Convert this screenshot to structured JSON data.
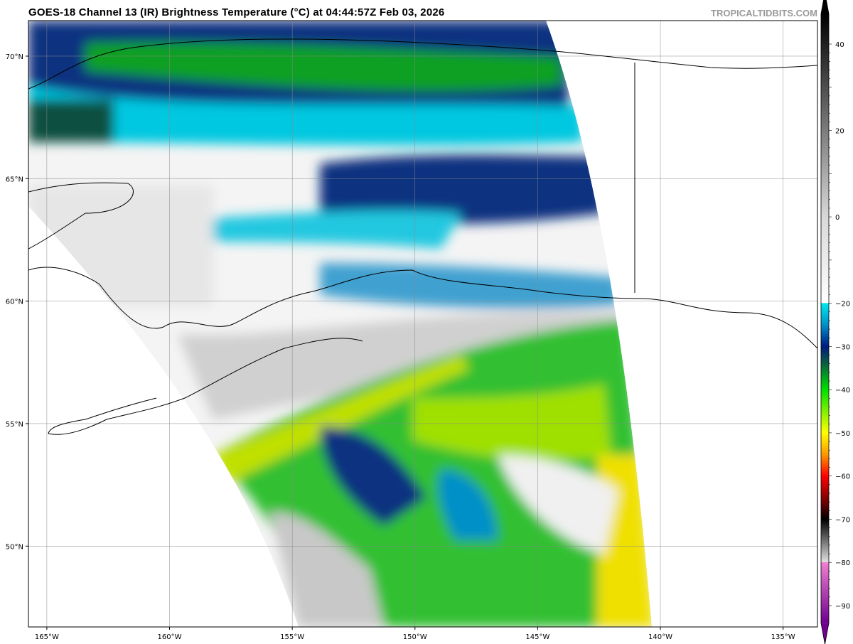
{
  "header": {
    "title": "GOES-18 Channel 13 (IR) Brightness Temperature (°C) at 04:44:57Z Feb 03, 2026",
    "credit": "TROPICALTIDBITS.COM"
  },
  "map": {
    "lon_labels": [
      "165°W",
      "160°W",
      "155°W",
      "150°W",
      "145°W",
      "140°W",
      "135°W"
    ],
    "lon_values": [
      -165,
      -160,
      -155,
      -150,
      -145,
      -140,
      -135
    ],
    "lat_labels": [
      "70°N",
      "65°N",
      "60°N",
      "55°N",
      "50°N"
    ],
    "lat_values": [
      70,
      65,
      60,
      55,
      50
    ],
    "extent": {
      "lon": [
        -165.75,
        -133.6
      ],
      "lat": [
        46.7,
        71.45
      ]
    }
  },
  "colorbar": {
    "tick_labels": [
      "40",
      "20",
      "0",
      "−20",
      "−30",
      "−40",
      "−50",
      "−60",
      "−70",
      "−80",
      "−90"
    ],
    "tick_values": [
      40,
      20,
      0,
      -20,
      -30,
      -40,
      -50,
      -60,
      -70,
      -80,
      -90
    ],
    "range": [
      -94,
      47
    ],
    "stops": [
      {
        "v": 47,
        "c": "#000000"
      },
      {
        "v": 0,
        "c": "#d8d8d8"
      },
      {
        "v": -19.9,
        "c": "#ffffff"
      },
      {
        "v": -20,
        "c": "#00e8f0"
      },
      {
        "v": -25,
        "c": "#0090c8"
      },
      {
        "v": -30,
        "c": "#001a80"
      },
      {
        "v": -34,
        "c": "#0a6040"
      },
      {
        "v": -40,
        "c": "#00e000"
      },
      {
        "v": -45,
        "c": "#80f000"
      },
      {
        "v": -50,
        "c": "#ffff00"
      },
      {
        "v": -55,
        "c": "#ff9900"
      },
      {
        "v": -60,
        "c": "#ff0000"
      },
      {
        "v": -66,
        "c": "#700000"
      },
      {
        "v": -70,
        "c": "#000000"
      },
      {
        "v": -79.9,
        "c": "#e0e0e0"
      },
      {
        "v": -80,
        "c": "#f080d0"
      },
      {
        "v": -94,
        "c": "#700090"
      }
    ]
  }
}
